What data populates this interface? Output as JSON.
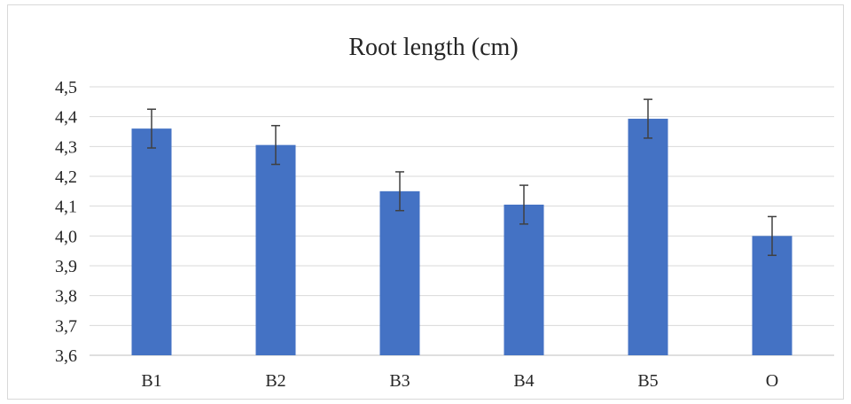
{
  "chart_data": {
    "type": "bar",
    "title": "Root length (cm)",
    "xlabel": "",
    "ylabel": "",
    "categories": [
      "B1",
      "B2",
      "B3",
      "B4",
      "B5",
      "O"
    ],
    "values": [
      4.36,
      4.305,
      4.15,
      4.105,
      4.393,
      4.0
    ],
    "error": [
      0.065,
      0.065,
      0.065,
      0.065,
      0.065,
      0.065
    ],
    "ylim": [
      3.6,
      4.5
    ],
    "yticks": [
      "3,6",
      "3,7",
      "3,8",
      "3,9",
      "4,0",
      "4,1",
      "4,2",
      "4,3",
      "4,4",
      "4,5"
    ],
    "grid": true,
    "legend": "none",
    "colors": {
      "bar": "#4472C4",
      "error_bar": "#404040",
      "grid": "#d9d9d9",
      "axis": "#bfbfbf",
      "text": "#262626"
    }
  }
}
